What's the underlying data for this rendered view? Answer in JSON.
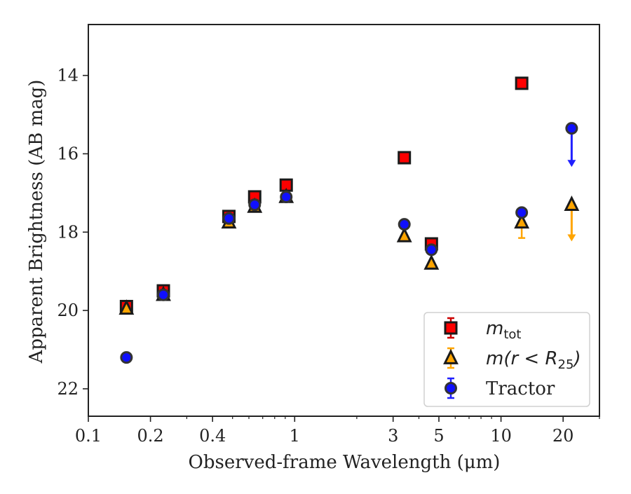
{
  "chart_data": {
    "type": "scatter",
    "xlabel": "Observed-frame Wavelength (μm)",
    "ylabel": "Apparent Brightness (AB mag)",
    "x_scale": "log",
    "y_inverted": true,
    "xlim": [
      0.1,
      30
    ],
    "ylim": [
      22.7,
      12.7
    ],
    "x_ticks": [
      0.1,
      0.2,
      0.4,
      1,
      3,
      5,
      10,
      20
    ],
    "x_tick_labels": [
      "0.1",
      "0.2",
      "0.4",
      "1",
      "3",
      "5",
      "10",
      "20"
    ],
    "y_ticks": [
      14,
      16,
      18,
      20,
      22
    ],
    "y_tick_labels": [
      "14",
      "16",
      "18",
      "20",
      "22"
    ],
    "legend_position": "bottom-right",
    "series": [
      {
        "name": "m_tot",
        "legend_label": {
          "main": "m",
          "sub": "tot"
        },
        "marker": "square",
        "color": "#ff0000",
        "edge_color": "#1a1a1a",
        "errorbar_color": "#cc0000",
        "points": [
          {
            "x": 0.153,
            "y": 19.9
          },
          {
            "x": 0.231,
            "y": 19.5
          },
          {
            "x": 0.48,
            "y": 17.6
          },
          {
            "x": 0.64,
            "y": 17.1
          },
          {
            "x": 0.91,
            "y": 16.8
          },
          {
            "x": 3.4,
            "y": 16.1
          },
          {
            "x": 4.6,
            "y": 18.3
          },
          {
            "x": 12.6,
            "y": 14.2
          }
        ]
      },
      {
        "name": "m(r < R_25)",
        "legend_label": {
          "main": "m(r < R",
          "sub": "25",
          "tail": ")"
        },
        "marker": "triangle",
        "color": "#ffa500",
        "edge_color": "#1a1a1a",
        "errorbar_color": "#ffa500",
        "points": [
          {
            "x": 0.153,
            "y": 19.95
          },
          {
            "x": 0.231,
            "y": 19.6
          },
          {
            "x": 0.48,
            "y": 17.75
          },
          {
            "x": 0.64,
            "y": 17.35
          },
          {
            "x": 0.91,
            "y": 17.1
          },
          {
            "x": 3.4,
            "y": 18.1
          },
          {
            "x": 4.6,
            "y": 18.8
          },
          {
            "x": 12.6,
            "y": 17.75,
            "yerr": [
              0.2,
              0.4
            ]
          },
          {
            "x": 22,
            "y": 17.3,
            "upper_limit_to": 18.2
          }
        ]
      },
      {
        "name": "Tractor",
        "legend_label": {
          "main": "Tractor"
        },
        "marker": "circle",
        "color": "#1010ff",
        "edge_color": "#333333",
        "errorbar_color": "#2020ff",
        "points": [
          {
            "x": 0.153,
            "y": 21.2
          },
          {
            "x": 0.231,
            "y": 19.6
          },
          {
            "x": 0.48,
            "y": 17.65
          },
          {
            "x": 0.64,
            "y": 17.3
          },
          {
            "x": 0.91,
            "y": 17.1
          },
          {
            "x": 3.4,
            "y": 17.8
          },
          {
            "x": 4.6,
            "y": 18.45
          },
          {
            "x": 12.6,
            "y": 17.5
          },
          {
            "x": 22,
            "y": 15.35,
            "upper_limit_to": 16.3
          }
        ]
      }
    ]
  }
}
